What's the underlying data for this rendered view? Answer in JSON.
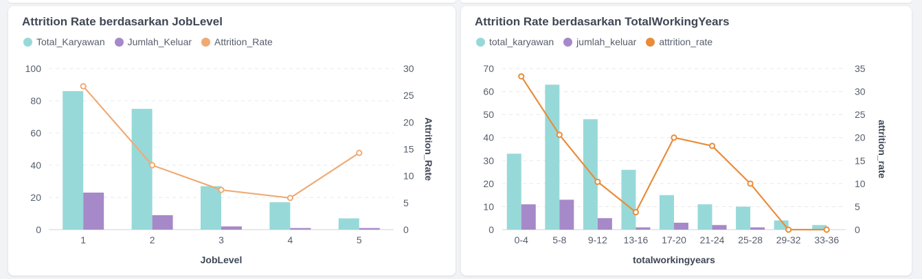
{
  "colors": {
    "teal": "#97d9d9",
    "purple": "#a689c8",
    "orange_left": "#efaa74",
    "orange_right": "#e88c3a"
  },
  "charts": [
    {
      "title": "Attrition Rate berdasarkan JobLevel",
      "legend": [
        "Total_Karyawan",
        "Jumlah_Keluar",
        "Attrition_Rate"
      ]
    },
    {
      "title": "Attrition Rate berdasarkan TotalWorkingYears",
      "legend": [
        "total_karyawan",
        "jumlah_keluar",
        "attrition_rate"
      ]
    }
  ],
  "chart_data": [
    {
      "type": "bar",
      "title": "Attrition Rate berdasarkan JobLevel",
      "xlabel": "JobLevel",
      "ylabel": "",
      "y2label": "Attrition_Rate",
      "categories": [
        "1",
        "2",
        "3",
        "4",
        "5"
      ],
      "ylim": [
        0,
        100
      ],
      "yticks": [
        0,
        20,
        40,
        60,
        80,
        100
      ],
      "y2lim": [
        0,
        30
      ],
      "y2ticks": [
        0,
        5,
        10,
        15,
        20,
        25,
        30
      ],
      "grid": true,
      "legend_position": "top-left",
      "series": [
        {
          "name": "Total_Karyawan",
          "type": "bar",
          "axis": "left",
          "values": [
            86,
            75,
            27,
            17,
            7
          ]
        },
        {
          "name": "Jumlah_Keluar",
          "type": "bar",
          "axis": "left",
          "values": [
            23,
            9,
            2,
            1,
            1
          ]
        },
        {
          "name": "Attrition_Rate",
          "type": "line",
          "axis": "right",
          "values": [
            26.7,
            12.0,
            7.4,
            5.9,
            14.3
          ]
        }
      ]
    },
    {
      "type": "bar",
      "title": "Attrition Rate berdasarkan TotalWorkingYears",
      "xlabel": "totalworkingyears",
      "ylabel": "",
      "y2label": "attrition_rate",
      "categories": [
        "0-4",
        "5-8",
        "9-12",
        "13-16",
        "17-20",
        "21-24",
        "25-28",
        "29-32",
        "33-36"
      ],
      "ylim": [
        0,
        70
      ],
      "yticks": [
        0,
        10,
        20,
        30,
        40,
        50,
        60,
        70
      ],
      "y2lim": [
        0,
        35
      ],
      "y2ticks": [
        0,
        5,
        10,
        15,
        20,
        25,
        30,
        35
      ],
      "grid": true,
      "legend_position": "top-left",
      "series": [
        {
          "name": "total_karyawan",
          "type": "bar",
          "axis": "left",
          "values": [
            33,
            63,
            48,
            26,
            15,
            11,
            10,
            4,
            2
          ]
        },
        {
          "name": "jumlah_keluar",
          "type": "bar",
          "axis": "left",
          "values": [
            11,
            13,
            5,
            1,
            3,
            2,
            1,
            0,
            0
          ]
        },
        {
          "name": "attrition_rate",
          "type": "line",
          "axis": "right",
          "values": [
            33.3,
            20.6,
            10.4,
            3.8,
            20.0,
            18.2,
            10.0,
            0,
            0
          ]
        }
      ]
    }
  ]
}
